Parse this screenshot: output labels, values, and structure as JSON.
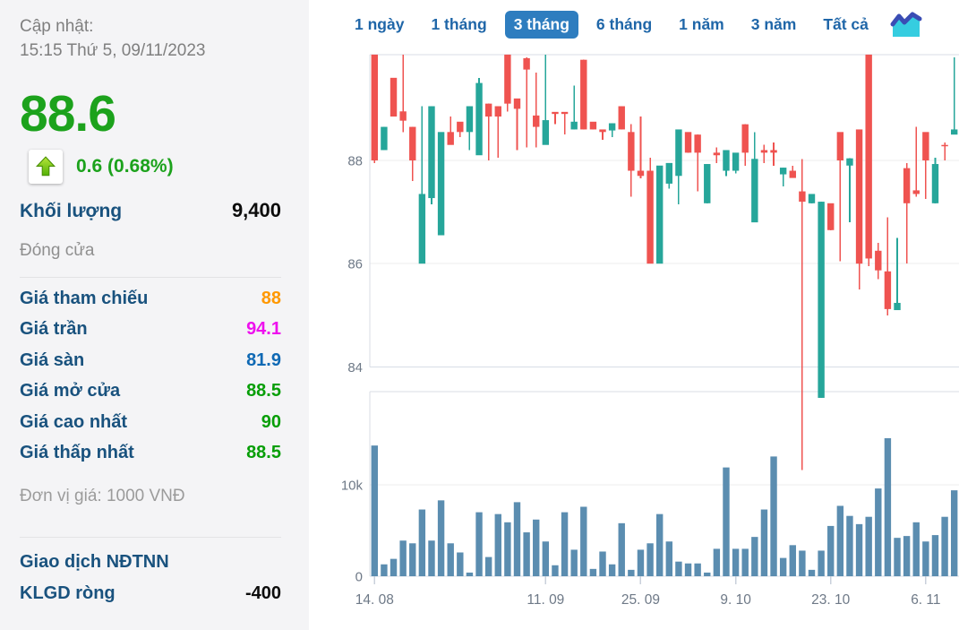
{
  "sidebar": {
    "updated_label": "Cập nhật:",
    "updated_time": "15:15 Thứ 5, 09/11/2023",
    "price": "88.6",
    "change": "0.6 (0.68%)",
    "volume_label": "Khối lượng",
    "volume_value": "9,400",
    "closed_label": "Đóng cửa",
    "rows": [
      {
        "label": "Giá tham chiếu",
        "value": "88",
        "color": "#ff9800"
      },
      {
        "label": "Giá trần",
        "value": "94.1",
        "color": "#ee10ee"
      },
      {
        "label": "Giá sàn",
        "value": "81.9",
        "color": "#0f69b4"
      },
      {
        "label": "Giá mở cửa",
        "value": "88.5",
        "color": "#089e08"
      },
      {
        "label": "Giá cao nhất",
        "value": "90",
        "color": "#089e08"
      },
      {
        "label": "Giá thấp nhất",
        "value": "88.5",
        "color": "#089e08"
      }
    ],
    "unit_note": "Đơn vị giá: 1000 VNĐ",
    "foreign_title": "Giao dịch NĐTNN",
    "foreign_row": {
      "label": "KLGD ròng",
      "value": "-400"
    }
  },
  "tabs": {
    "items": [
      "1 ngày",
      "1 tháng",
      "3 tháng",
      "6 tháng",
      "1 năm",
      "3 năm",
      "Tất cả"
    ],
    "active_index": 2
  },
  "chart_data": {
    "type": "candlestick+volume",
    "title": "",
    "price_axis": {
      "tick_labels": [
        "88",
        "86",
        "84"
      ],
      "tick_values": [
        88,
        86,
        84
      ],
      "range": [
        84,
        90.05
      ]
    },
    "volume_axis": {
      "tick_labels": [
        "10k",
        "0"
      ],
      "tick_values_k": [
        10,
        0
      ],
      "range_k": [
        0,
        20.2
      ]
    },
    "x_ticks": [
      {
        "label": "14. 08",
        "index": 0
      },
      {
        "label": "11. 09",
        "index": 18
      },
      {
        "label": "25. 09",
        "index": 28
      },
      {
        "label": "9. 10",
        "index": 38
      },
      {
        "label": "23. 10",
        "index": 48
      },
      {
        "label": "6. 11",
        "index": 58
      }
    ],
    "candles_ohlc": [
      [
        90.05,
        90.05,
        87.95,
        88.0
      ],
      [
        88.2,
        88.65,
        88.2,
        88.65
      ],
      [
        89.6,
        89.6,
        88.85,
        88.85
      ],
      [
        88.95,
        90.05,
        88.55,
        88.77
      ],
      [
        88.65,
        88.65,
        87.6,
        88.0
      ],
      [
        86.0,
        89.05,
        86.0,
        87.35
      ],
      [
        87.27,
        89.05,
        87.15,
        89.05
      ],
      [
        86.55,
        88.55,
        86.55,
        88.55
      ],
      [
        88.55,
        88.85,
        88.3,
        88.3
      ],
      [
        88.75,
        88.75,
        88.45,
        88.55
      ],
      [
        88.55,
        89.05,
        88.2,
        89.05
      ],
      [
        88.1,
        89.6,
        88.1,
        89.5
      ],
      [
        89.1,
        89.1,
        88.0,
        88.85
      ],
      [
        89.05,
        89.05,
        88.05,
        88.85
      ],
      [
        90.05,
        90.05,
        88.95,
        89.1
      ],
      [
        89.2,
        89.2,
        88.2,
        89.0
      ],
      [
        89.98,
        90.0,
        88.25,
        89.76
      ],
      [
        88.87,
        89.7,
        88.25,
        88.65
      ],
      [
        88.3,
        90.05,
        88.3,
        88.78
      ],
      [
        88.94,
        88.94,
        88.7,
        88.9
      ],
      [
        88.94,
        88.94,
        88.5,
        88.9
      ],
      [
        88.6,
        89.45,
        88.6,
        88.75
      ],
      [
        89.95,
        89.95,
        88.6,
        88.6
      ],
      [
        88.75,
        88.75,
        88.6,
        88.6
      ],
      [
        88.6,
        88.6,
        88.4,
        88.55
      ],
      [
        88.58,
        88.72,
        88.45,
        88.72
      ],
      [
        89.05,
        89.05,
        88.6,
        88.6
      ],
      [
        88.55,
        88.7,
        87.3,
        87.8
      ],
      [
        87.8,
        88.85,
        87.65,
        87.7
      ],
      [
        87.8,
        88.05,
        86.0,
        86.0
      ],
      [
        86.0,
        87.9,
        86.0,
        87.9
      ],
      [
        87.55,
        87.95,
        87.45,
        87.95
      ],
      [
        87.7,
        88.6,
        87.15,
        88.6
      ],
      [
        88.55,
        88.55,
        88.15,
        88.15
      ],
      [
        88.5,
        88.5,
        87.4,
        88.15
      ],
      [
        87.17,
        87.93,
        87.17,
        87.93
      ],
      [
        88.15,
        88.25,
        87.95,
        88.1
      ],
      [
        87.8,
        88.2,
        87.7,
        88.2
      ],
      [
        87.8,
        88.15,
        87.75,
        88.15
      ],
      [
        88.7,
        88.7,
        87.9,
        88.15
      ],
      [
        86.8,
        88.55,
        86.8,
        88.03
      ],
      [
        88.2,
        88.3,
        87.95,
        88.15
      ],
      [
        88.2,
        88.35,
        87.9,
        88.15
      ],
      [
        87.73,
        87.86,
        87.5,
        87.86
      ],
      [
        87.8,
        87.9,
        87.66,
        87.66
      ],
      [
        87.4,
        88.03,
        82.0,
        87.2
      ],
      [
        87.17,
        87.35,
        87.17,
        87.35
      ],
      [
        83.4,
        87.2,
        83.4,
        87.2
      ],
      [
        87.17,
        87.17,
        86.65,
        86.65
      ],
      [
        88.55,
        88.55,
        86.05,
        88.0
      ],
      [
        87.9,
        88.04,
        86.8,
        88.04
      ],
      [
        88.6,
        88.6,
        85.5,
        86.0
      ],
      [
        90.05,
        90.05,
        85.95,
        86.1
      ],
      [
        86.25,
        86.4,
        85.7,
        85.87
      ],
      [
        85.85,
        86.9,
        85.0,
        85.12
      ],
      [
        85.1,
        86.5,
        85.1,
        85.24
      ],
      [
        87.85,
        87.95,
        86.0,
        87.17
      ],
      [
        87.42,
        88.65,
        87.3,
        87.35
      ],
      [
        88.55,
        88.55,
        87.25,
        88.0
      ],
      [
        87.17,
        88.05,
        87.17,
        87.93
      ],
      [
        88.3,
        88.35,
        88.0,
        88.28
      ],
      [
        88.5,
        90.0,
        88.5,
        88.6
      ]
    ],
    "volumes_k": [
      14.3,
      1.3,
      1.9,
      3.9,
      3.6,
      7.3,
      3.9,
      8.3,
      3.6,
      2.6,
      0.4,
      7.0,
      2.1,
      6.8,
      5.9,
      8.1,
      4.8,
      6.2,
      3.8,
      1.2,
      7.0,
      2.9,
      7.6,
      0.8,
      2.7,
      1.3,
      5.8,
      0.7,
      2.9,
      3.6,
      6.8,
      3.8,
      1.6,
      1.4,
      1.4,
      0.4,
      3.0,
      11.9,
      3.0,
      3.0,
      4.3,
      7.3,
      13.1,
      2.0,
      3.4,
      2.8,
      0.7,
      2.8,
      5.5,
      7.7,
      6.6,
      5.7,
      6.5,
      9.6,
      15.1,
      4.2,
      4.4,
      5.9,
      3.8,
      4.5,
      6.5,
      9.4
    ],
    "legend": "none",
    "grid": true,
    "colors": {
      "up": "#26a69a",
      "down": "#ef5350",
      "volume": "#5b8db0",
      "grid": "#ececec",
      "axis": "#d8dde6",
      "label": "#6e7987",
      "tick": "#c9d0db"
    }
  }
}
